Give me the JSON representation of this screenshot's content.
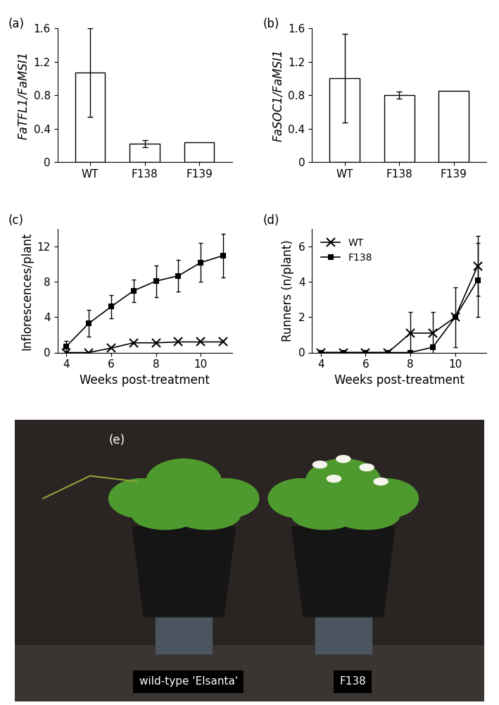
{
  "chart_data": [
    {
      "type": "bar",
      "title": "(a)",
      "y_label": "FaTFL1/FaMSI1",
      "categories": [
        "WT",
        "F138",
        "F139"
      ],
      "values": [
        1.07,
        0.22,
        0.24
      ],
      "errors": [
        0.53,
        0.04,
        null
      ],
      "color": "#ffffff",
      "ylim": [
        0,
        1.6
      ],
      "yticks": [
        0,
        0.4,
        0.8,
        1.2,
        1.6
      ]
    },
    {
      "type": "bar",
      "title": "(b)",
      "y_label": "FaSOC1/FaMSI1",
      "categories": [
        "WT",
        "F138",
        "F139"
      ],
      "values": [
        1.0,
        0.8,
        0.85
      ],
      "errors": [
        0.53,
        0.04,
        null
      ],
      "color": "#ffffff",
      "ylim": [
        0,
        1.6
      ],
      "yticks": [
        0,
        0.4,
        0.8,
        1.2,
        1.6
      ]
    },
    {
      "type": "line",
      "title": "(c)",
      "x_label": "Weeks post-treatment",
      "y_label": "Inflorescences/plant",
      "x": [
        4,
        5,
        6,
        7,
        8,
        9,
        10,
        11
      ],
      "series": [
        {
          "name": "WT",
          "color": "#000000",
          "marker": "x",
          "values": [
            0,
            0,
            0.5,
            1.1,
            1.1,
            1.2,
            1.2,
            1.2
          ],
          "errors": [
            null,
            null,
            null,
            null,
            null,
            null,
            null,
            null
          ]
        },
        {
          "name": "F138",
          "color": "#000000",
          "marker": "s",
          "values": [
            0.7,
            3.3,
            5.2,
            7.0,
            8.1,
            8.7,
            10.2,
            11.0
          ],
          "errors": [
            0.6,
            1.5,
            1.3,
            1.3,
            1.8,
            1.8,
            2.2,
            2.5
          ]
        }
      ],
      "xlim": [
        3.6,
        11.4
      ],
      "xticks": [
        4,
        6,
        8,
        10
      ],
      "ylim": [
        0,
        14
      ],
      "yticks": [
        0,
        4,
        8,
        12
      ]
    },
    {
      "type": "line",
      "title": "(d)",
      "x_label": "Weeks post-treatment",
      "y_label": "Runners (n/plant)",
      "x": [
        4,
        5,
        6,
        7,
        8,
        9,
        10,
        11
      ],
      "series": [
        {
          "name": "WT",
          "color": "#000000",
          "marker": "x",
          "values": [
            0,
            0,
            0,
            0,
            1.1,
            1.1,
            2.0,
            4.9
          ],
          "errors": [
            null,
            null,
            null,
            null,
            1.2,
            1.2,
            1.7,
            1.7
          ]
        },
        {
          "name": "F138",
          "color": "#000000",
          "marker": "s",
          "values": [
            0,
            0,
            0,
            0,
            0,
            0.3,
            2.0,
            4.1
          ],
          "errors": [
            null,
            null,
            null,
            null,
            null,
            null,
            null,
            2.1
          ]
        }
      ],
      "xlim": [
        3.6,
        11.4
      ],
      "xticks": [
        4,
        6,
        8,
        10
      ],
      "ylim": [
        0,
        7
      ],
      "yticks": [
        0,
        2,
        4,
        6
      ],
      "legend": "upper left"
    },
    {
      "type": "image",
      "title": "(e)",
      "labels": [
        "wild-type 'Elsanta'",
        "F138"
      ]
    }
  ]
}
